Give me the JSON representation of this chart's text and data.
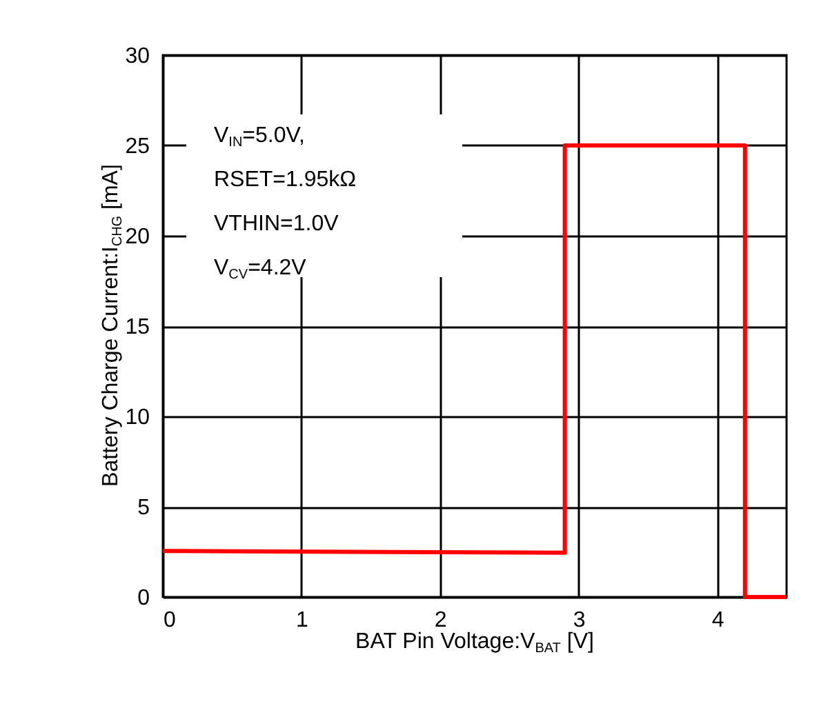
{
  "chart_data": {
    "type": "line",
    "xlabel": "BAT Pin Voltage:V$_{BAT}$ [V]",
    "ylabel": "Battery Charge Current:I$_{CHG}$ [mA]",
    "x": [
      0,
      2.9,
      2.9,
      4.2,
      4.2,
      4.5
    ],
    "series": [
      {
        "color": "#ff0000",
        "values": [
          2.55,
          2.45,
          25,
          25,
          0,
          0
        ]
      }
    ],
    "xlim": [
      0,
      4.5
    ],
    "xticks": [
      0,
      1,
      2,
      3,
      4
    ],
    "ylim": [
      0,
      30
    ],
    "yticks": [
      0,
      5,
      10,
      15,
      20,
      25,
      30
    ],
    "grid": true,
    "legend": false,
    "annotations": [
      "V$_{IN}$=5.0V,",
      "RSET=1.95kΩ",
      "VTHIN=1.0V",
      "V$_{CV}$=4.2V"
    ]
  }
}
